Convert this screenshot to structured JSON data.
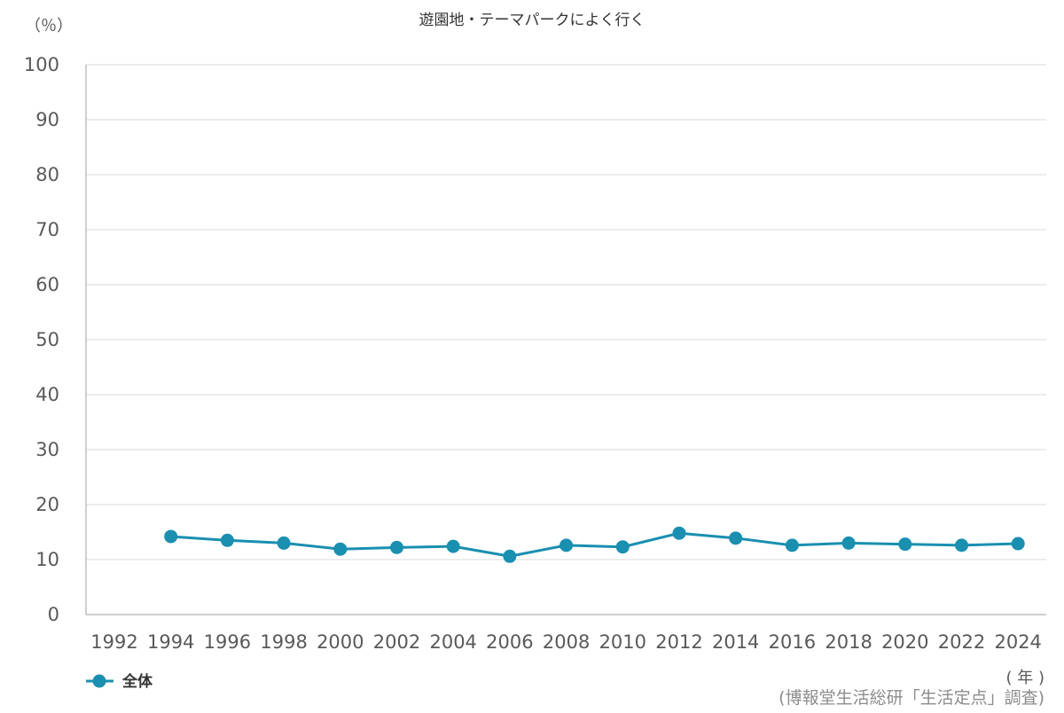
{
  "chart_data": {
    "type": "line",
    "title": "遊園地・テーマパークによく行く",
    "y_unit_label": "（％）",
    "x_unit_label": "( 年 )",
    "source": "(博報堂生活総研「生活定点」調査)",
    "ylim": [
      0,
      100
    ],
    "yticks": [
      0,
      10,
      20,
      30,
      40,
      50,
      60,
      70,
      80,
      90,
      100
    ],
    "categories": [
      "1992",
      "1994",
      "1996",
      "1998",
      "2000",
      "2002",
      "2004",
      "2006",
      "2008",
      "2010",
      "2012",
      "2014",
      "2016",
      "2018",
      "2020",
      "2022",
      "2024"
    ],
    "grid": true,
    "legend_position": "bottom-left",
    "series": [
      {
        "name": "全体",
        "color": "#1a8fb0",
        "values": [
          null,
          14.2,
          13.5,
          13.0,
          11.9,
          12.2,
          12.4,
          10.6,
          12.6,
          12.3,
          14.8,
          13.9,
          12.6,
          13.0,
          12.8,
          12.6,
          12.9
        ]
      }
    ]
  }
}
